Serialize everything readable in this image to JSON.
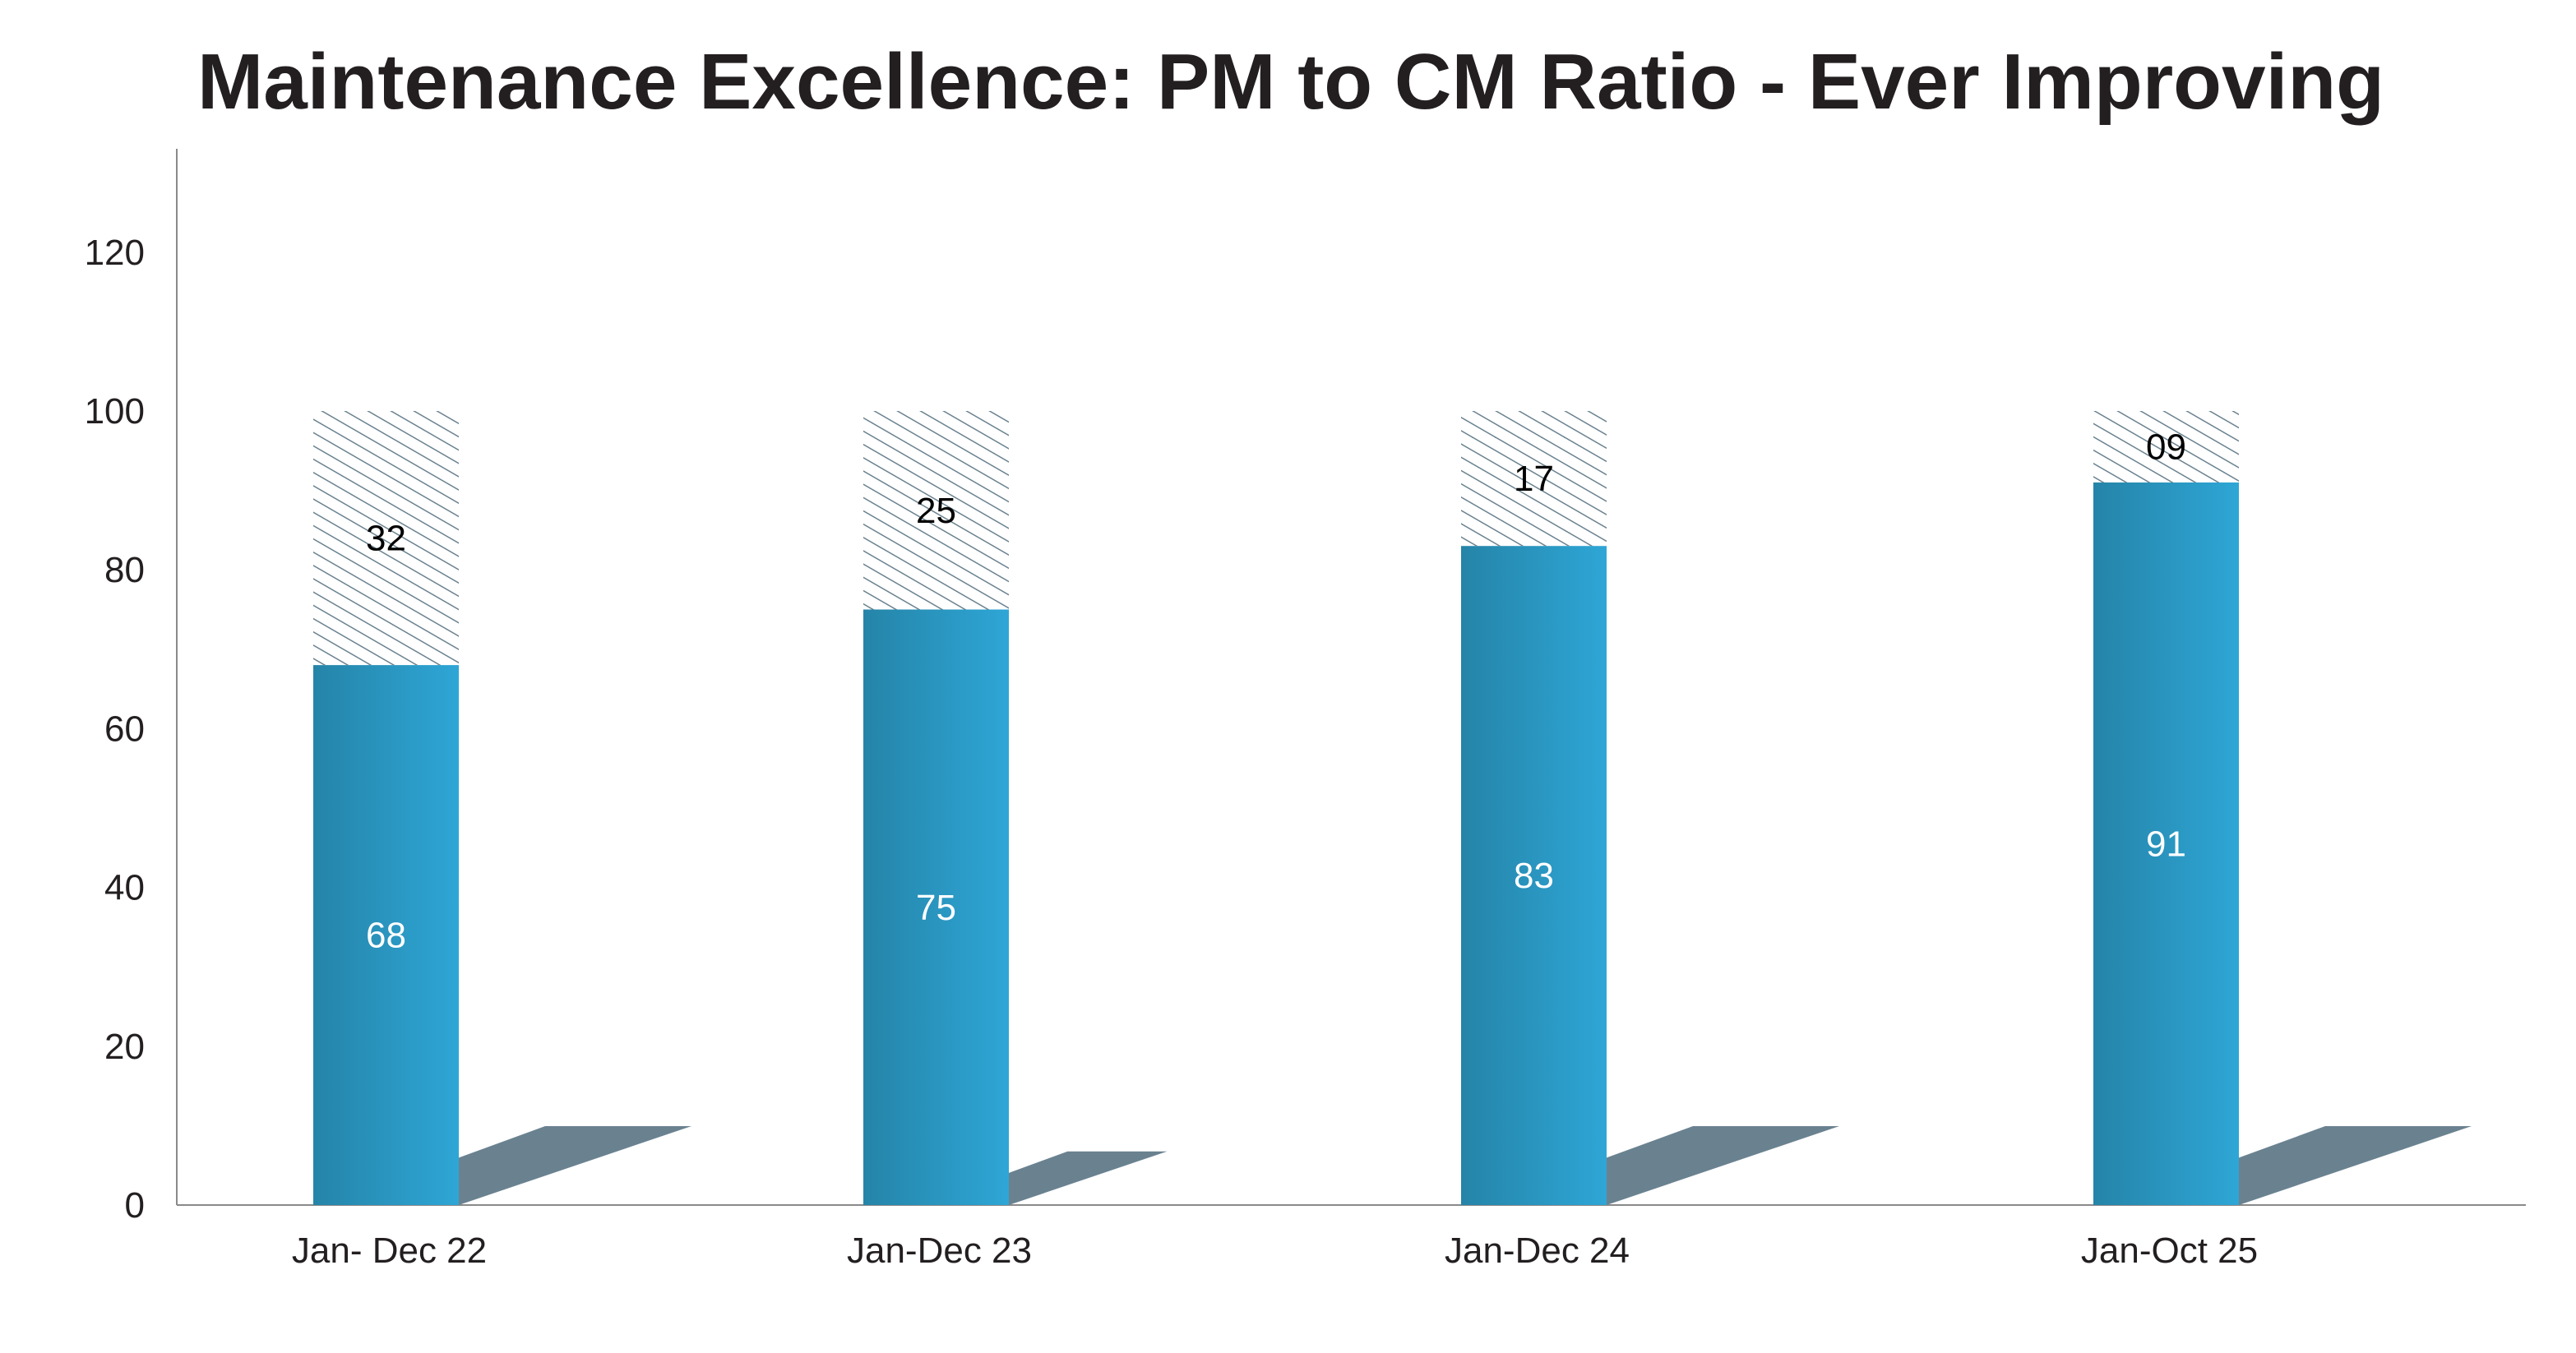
{
  "chart_data": {
    "type": "bar",
    "stacked": true,
    "title": "Maintenance Excellence: PM to CM Ratio - Ever Improving",
    "xlabel": "",
    "ylabel": "",
    "ylim": [
      0,
      133
    ],
    "yticks": [
      0,
      20,
      40,
      60,
      80,
      100,
      120
    ],
    "grid": false,
    "categories": [
      "Jan- Dec 22",
      "Jan-Dec 23",
      "Jan-Dec 24",
      "Jan-Oct 25"
    ],
    "series": [
      {
        "values": [
          68,
          75,
          83,
          91
        ],
        "labels": [
          "68",
          "75",
          "83",
          "91"
        ],
        "color_left": "#2584a8",
        "color_right": "#2ea6d6",
        "fill": "gradient"
      },
      {
        "values": [
          32,
          25,
          17,
          9
        ],
        "labels": [
          "32",
          "25",
          "17",
          "09"
        ],
        "color": "#6a8290",
        "fill": "hatch"
      }
    ],
    "shadow_color": "#6a8290"
  }
}
